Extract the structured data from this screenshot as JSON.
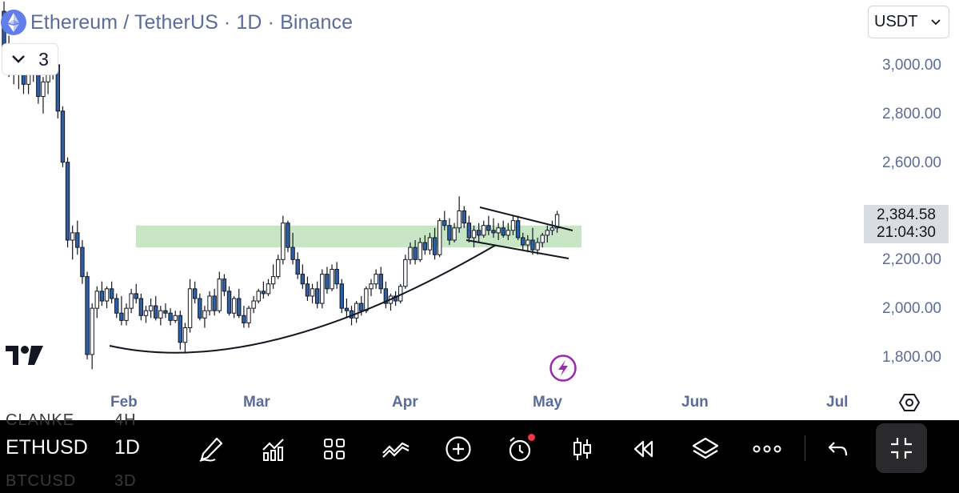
{
  "header": {
    "title": "Ethereum / TetherUS · 1D · Binance",
    "collapse_count": "3",
    "currency": "USDT"
  },
  "price_axis": {
    "labels": [
      "3,000.00",
      "2,800.00",
      "2,600.00",
      "2,200.00",
      "2,000.00",
      "1,800.00"
    ],
    "current_price": "2,384.58",
    "countdown": "21:04:30"
  },
  "time_axis": {
    "labels": [
      "Feb",
      "Mar",
      "Apr",
      "May",
      "Jun",
      "Jul"
    ]
  },
  "toolbar": {
    "symbol": "ETHUSD",
    "interval": "1D",
    "ghost_above": [
      "CLANKE",
      "4H"
    ],
    "ghost_below": [
      "BTCUSD",
      "3D"
    ]
  },
  "colors": {
    "candle_up": "#ffffff",
    "candle_down": "#2c5fa8",
    "candle_outline": "#131722",
    "zone": "#c8e6c5",
    "axis_text": "#5b6b9a",
    "alert_dot": "#f23645"
  },
  "chart_data": {
    "type": "candlestick",
    "instrument": "Ethereum / TetherUS",
    "interval": "1D",
    "exchange": "Binance",
    "ylim": [
      1720,
      3220
    ],
    "y_ticks": [
      1800,
      2000,
      2200,
      2600,
      2800,
      3000
    ],
    "x_ticks": [
      "Feb",
      "Mar",
      "Apr",
      "May",
      "Jun",
      "Jul"
    ],
    "last_price": 2384.58,
    "zone": {
      "low": 2250,
      "high": 2340,
      "x_start": "Jan 31",
      "x_end": "May 9"
    },
    "candles": [
      [
        3220,
        3260,
        2975,
        3060
      ],
      [
        3060,
        3120,
        2950,
        3010
      ],
      [
        3010,
        3080,
        2920,
        2990
      ],
      [
        2990,
        3050,
        2900,
        2960
      ],
      [
        2960,
        3010,
        2880,
        2920
      ],
      [
        2920,
        3000,
        2880,
        2980
      ],
      [
        2980,
        3040,
        2930,
        2960
      ],
      [
        2960,
        3020,
        2840,
        2870
      ],
      [
        2870,
        2950,
        2800,
        2930
      ],
      [
        2930,
        3010,
        2880,
        2990
      ],
      [
        2990,
        3050,
        2940,
        3000
      ],
      [
        3000,
        3020,
        2780,
        2810
      ],
      [
        2810,
        2830,
        2580,
        2600
      ],
      [
        2600,
        2620,
        2250,
        2280
      ],
      [
        2280,
        2340,
        2200,
        2310
      ],
      [
        2310,
        2360,
        2220,
        2250
      ],
      [
        2250,
        2280,
        2100,
        2130
      ],
      [
        2130,
        2150,
        1790,
        1810
      ],
      [
        1810,
        2020,
        1750,
        2000
      ],
      [
        2000,
        2090,
        1960,
        2070
      ],
      [
        2070,
        2110,
        2010,
        2030
      ],
      [
        2030,
        2090,
        2000,
        2080
      ],
      [
        2080,
        2110,
        2020,
        2040
      ],
      [
        2040,
        2060,
        1960,
        1980
      ],
      [
        1980,
        2050,
        1930,
        1950
      ],
      [
        1950,
        2020,
        1930,
        2000
      ],
      [
        2000,
        2080,
        1980,
        2060
      ],
      [
        2060,
        2100,
        2020,
        2040
      ],
      [
        2040,
        2060,
        1950,
        1970
      ],
      [
        1970,
        2010,
        1940,
        1990
      ],
      [
        1990,
        2040,
        1960,
        2010
      ],
      [
        2010,
        2050,
        1950,
        1960
      ],
      [
        1960,
        2010,
        1930,
        1990
      ],
      [
        1990,
        2020,
        1960,
        1980
      ],
      [
        1980,
        2000,
        1930,
        1950
      ],
      [
        1950,
        1990,
        1940,
        1970
      ],
      [
        1970,
        1990,
        1830,
        1860
      ],
      [
        1860,
        1940,
        1820,
        1920
      ],
      [
        1920,
        2120,
        1900,
        2080
      ],
      [
        2080,
        2110,
        2020,
        2040
      ],
      [
        2040,
        2060,
        1950,
        1960
      ],
      [
        1960,
        2010,
        1920,
        1990
      ],
      [
        1990,
        2070,
        1970,
        2050
      ],
      [
        2050,
        2080,
        1970,
        1990
      ],
      [
        1990,
        2150,
        1980,
        2120
      ],
      [
        2120,
        2140,
        2050,
        2070
      ],
      [
        2070,
        2090,
        1970,
        1980
      ],
      [
        1980,
        2050,
        1960,
        2040
      ],
      [
        2040,
        2080,
        1960,
        1970
      ],
      [
        1970,
        2010,
        1920,
        1940
      ],
      [
        1940,
        2010,
        1920,
        2000
      ],
      [
        2000,
        2050,
        1980,
        2030
      ],
      [
        2030,
        2080,
        2020,
        2070
      ],
      [
        2070,
        2110,
        2040,
        2060
      ],
      [
        2060,
        2120,
        2050,
        2100
      ],
      [
        2100,
        2180,
        2080,
        2130
      ],
      [
        2130,
        2220,
        2120,
        2200
      ],
      [
        2200,
        2380,
        2180,
        2350
      ],
      [
        2350,
        2360,
        2230,
        2250
      ],
      [
        2250,
        2310,
        2180,
        2200
      ],
      [
        2200,
        2230,
        2120,
        2140
      ],
      [
        2140,
        2180,
        2080,
        2100
      ],
      [
        2100,
        2130,
        2030,
        2050
      ],
      [
        2050,
        2100,
        2020,
        2080
      ],
      [
        2080,
        2110,
        2000,
        2020
      ],
      [
        2020,
        2160,
        2000,
        2140
      ],
      [
        2140,
        2170,
        2060,
        2080
      ],
      [
        2080,
        2180,
        2070,
        2160
      ],
      [
        2160,
        2190,
        2080,
        2100
      ],
      [
        2100,
        2120,
        1980,
        2000
      ],
      [
        2000,
        2040,
        1960,
        1990
      ],
      [
        1990,
        2010,
        1930,
        1960
      ],
      [
        1960,
        2030,
        1940,
        2020
      ],
      [
        2020,
        2050,
        1970,
        1990
      ],
      [
        1990,
        2090,
        1980,
        2080
      ],
      [
        2080,
        2120,
        2050,
        2100
      ],
      [
        2100,
        2160,
        2080,
        2140
      ],
      [
        2140,
        2170,
        2060,
        2080
      ],
      [
        2080,
        2110,
        2000,
        2020
      ],
      [
        2020,
        2060,
        1990,
        2050
      ],
      [
        2050,
        2070,
        2010,
        2030
      ],
      [
        2030,
        2100,
        2020,
        2090
      ],
      [
        2090,
        2220,
        2080,
        2200
      ],
      [
        2200,
        2270,
        2180,
        2250
      ],
      [
        2250,
        2280,
        2180,
        2200
      ],
      [
        2200,
        2290,
        2190,
        2270
      ],
      [
        2270,
        2300,
        2220,
        2240
      ],
      [
        2240,
        2310,
        2220,
        2290
      ],
      [
        2290,
        2330,
        2200,
        2220
      ],
      [
        2220,
        2370,
        2210,
        2360
      ],
      [
        2360,
        2400,
        2320,
        2340
      ],
      [
        2340,
        2370,
        2260,
        2280
      ],
      [
        2280,
        2350,
        2270,
        2330
      ],
      [
        2330,
        2460,
        2310,
        2400
      ],
      [
        2400,
        2420,
        2330,
        2350
      ],
      [
        2350,
        2380,
        2270,
        2290
      ],
      [
        2290,
        2340,
        2250,
        2320
      ],
      [
        2320,
        2350,
        2270,
        2300
      ],
      [
        2300,
        2360,
        2290,
        2340
      ],
      [
        2340,
        2380,
        2300,
        2320
      ],
      [
        2320,
        2370,
        2290,
        2310
      ],
      [
        2310,
        2350,
        2280,
        2330
      ],
      [
        2330,
        2360,
        2290,
        2300
      ],
      [
        2300,
        2350,
        2280,
        2320
      ],
      [
        2320,
        2380,
        2300,
        2360
      ],
      [
        2360,
        2380,
        2280,
        2290
      ],
      [
        2290,
        2310,
        2240,
        2260
      ],
      [
        2260,
        2300,
        2230,
        2280
      ],
      [
        2280,
        2330,
        2220,
        2240
      ],
      [
        2240,
        2290,
        2220,
        2270
      ],
      [
        2270,
        2310,
        2250,
        2300
      ],
      [
        2300,
        2340,
        2270,
        2320
      ],
      [
        2320,
        2360,
        2300,
        2330
      ],
      [
        2330,
        2400,
        2310,
        2385
      ]
    ]
  }
}
